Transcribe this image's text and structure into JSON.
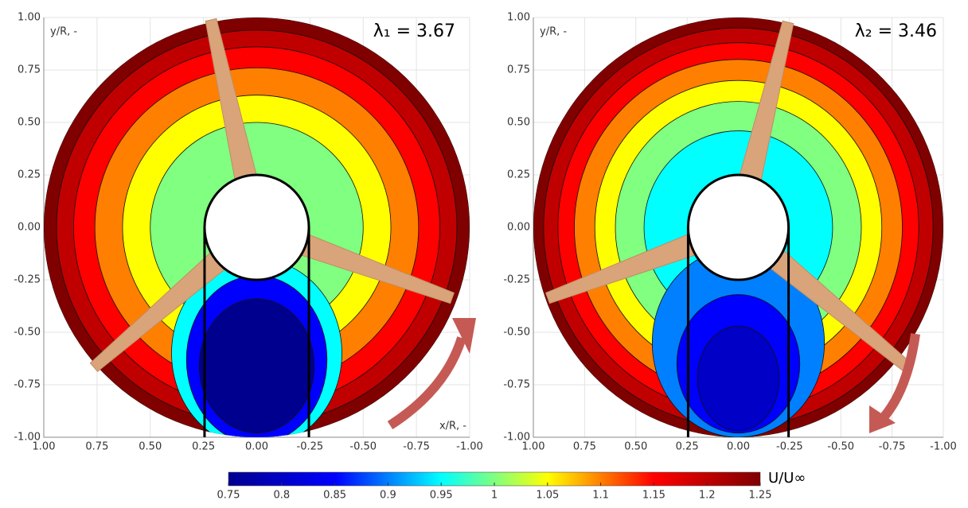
{
  "chart_data": [
    {
      "type": "contour",
      "y_label": "y/R, -",
      "x_label": "x/R, -",
      "annotation": "λ₁ = 3.67",
      "xlim": [
        1,
        -1
      ],
      "ylim": [
        -1,
        1
      ],
      "xticks": [
        {
          "value": 1,
          "label": "1.00"
        },
        {
          "value": 0.75,
          "label": "0.75"
        },
        {
          "value": 0.5,
          "label": "0.50"
        },
        {
          "value": 0.25,
          "label": "0.25"
        },
        {
          "value": 0,
          "label": "0.00"
        },
        {
          "value": -0.25,
          "label": "-0.25"
        },
        {
          "value": -0.5,
          "label": "-0.50"
        },
        {
          "value": -0.75,
          "label": "-0.75"
        },
        {
          "value": -1,
          "label": "-1.00"
        }
      ],
      "yticks": [
        {
          "value": -1,
          "label": "-1.00"
        },
        {
          "value": -0.75,
          "label": "-0.75"
        },
        {
          "value": -0.5,
          "label": "-0.50"
        },
        {
          "value": -0.25,
          "label": "-0.25"
        },
        {
          "value": 0,
          "label": "0.00"
        },
        {
          "value": 0.25,
          "label": "0.25"
        },
        {
          "value": 0.5,
          "label": "0.50"
        },
        {
          "value": 0.75,
          "label": "0.75"
        },
        {
          "value": 1,
          "label": "1.00"
        }
      ],
      "rings": [
        {
          "level": 1.25,
          "r": 1.0
        },
        {
          "level": 1.2,
          "r": 0.94
        },
        {
          "level": 1.15,
          "r": 0.86
        },
        {
          "level": 1.1,
          "r": 0.76
        },
        {
          "level": 1.05,
          "r": 0.63
        },
        {
          "level": 1.0,
          "r": 0.5
        }
      ],
      "blobs": [
        {
          "level": 0.95,
          "cx": 0,
          "cy": -0.6,
          "rx": 0.4,
          "ry": 0.45
        },
        {
          "level": 0.85,
          "cx": 0,
          "cy": -0.63,
          "rx": 0.33,
          "ry": 0.4
        },
        {
          "level": 0.75,
          "cx": 0,
          "cy": -0.66,
          "rx": 0.27,
          "ry": 0.32
        }
      ]
    },
    {
      "type": "contour",
      "y_label": "y/R, -",
      "annotation": "λ₂ = 3.46",
      "xlim": [
        1,
        -1
      ],
      "ylim": [
        -1,
        1
      ],
      "xticks": [
        {
          "value": 1,
          "label": "1.00"
        },
        {
          "value": 0.75,
          "label": "0.75"
        },
        {
          "value": 0.5,
          "label": "0.50"
        },
        {
          "value": 0.25,
          "label": "0.25"
        },
        {
          "value": 0,
          "label": "0.00"
        },
        {
          "value": -0.25,
          "label": "-0.25"
        },
        {
          "value": -0.5,
          "label": "-0.50"
        },
        {
          "value": -0.75,
          "label": "-0.75"
        },
        {
          "value": -1,
          "label": "-1.00"
        }
      ],
      "yticks": [
        {
          "value": -1,
          "label": "-1.00"
        },
        {
          "value": -0.75,
          "label": "-0.75"
        },
        {
          "value": -0.5,
          "label": "-0.50"
        },
        {
          "value": -0.25,
          "label": "-0.25"
        },
        {
          "value": 0,
          "label": "0.00"
        },
        {
          "value": 0.25,
          "label": "0.25"
        },
        {
          "value": 0.5,
          "label": "0.50"
        },
        {
          "value": 0.75,
          "label": "0.75"
        },
        {
          "value": 1,
          "label": "1.00"
        }
      ],
      "rings": [
        {
          "level": 1.25,
          "r": 1.0
        },
        {
          "level": 1.2,
          "r": 0.95
        },
        {
          "level": 1.15,
          "r": 0.88
        },
        {
          "level": 1.1,
          "r": 0.8
        },
        {
          "level": 1.05,
          "r": 0.7
        },
        {
          "level": 1.0,
          "r": 0.6
        },
        {
          "level": 0.95,
          "r": 0.46
        }
      ],
      "blobs": [
        {
          "level": 0.9,
          "cx": 0,
          "cy": -0.55,
          "rx": 0.42,
          "ry": 0.45
        },
        {
          "level": 0.85,
          "cx": 0,
          "cy": -0.65,
          "rx": 0.3,
          "ry": 0.33
        },
        {
          "level": 0.8,
          "cx": 0,
          "cy": -0.72,
          "rx": 0.2,
          "ry": 0.25
        }
      ]
    },
    {
      "type": "colorbar",
      "label": "U/U∞",
      "clim": [
        0.75,
        1.25
      ],
      "ticks": [
        0.75,
        0.8,
        0.85,
        0.9,
        0.95,
        1,
        1.05,
        1.1,
        1.15,
        1.2,
        1.25
      ],
      "colormap": [
        "#00008f",
        "#0000ff",
        "#00ffff",
        "#ffff00",
        "#ff0000",
        "#800000"
      ]
    }
  ]
}
